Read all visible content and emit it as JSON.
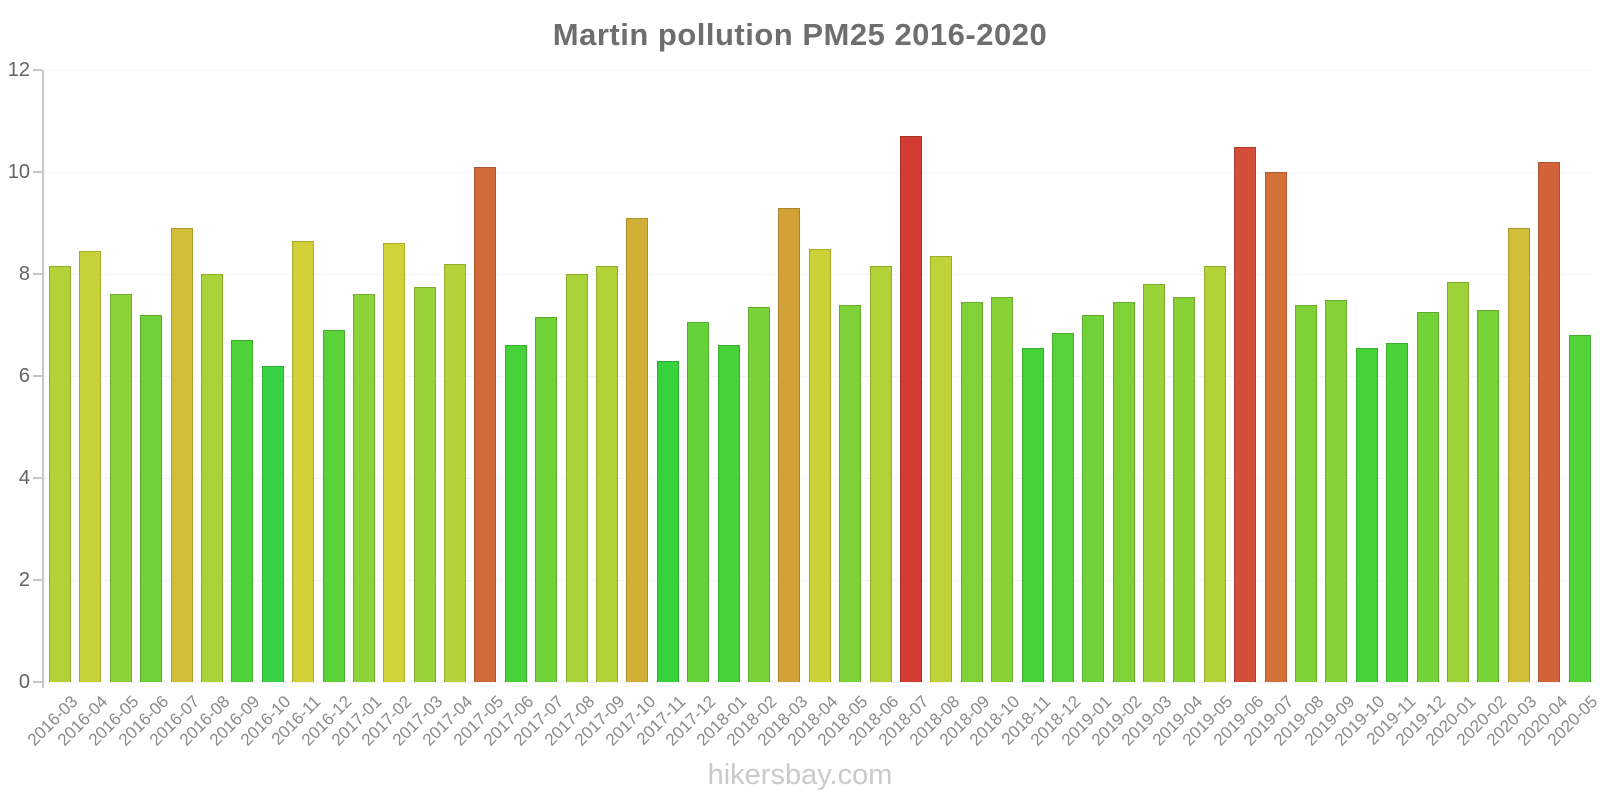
{
  "title": "Martin pollution PM25 2016-2020",
  "watermark": "hikersbay.com",
  "chart_data": {
    "type": "bar",
    "title": "Martin pollution PM25 2016-2020",
    "xlabel": "",
    "ylabel": "",
    "ylim": [
      0,
      12
    ],
    "yticks": [
      0,
      2,
      4,
      6,
      8,
      10,
      12
    ],
    "grid": "faint-horizontal",
    "legend": "none",
    "categories": [
      "2016-03",
      "2016-04",
      "2016-05",
      "2016-06",
      "2016-07",
      "2016-08",
      "2016-09",
      "2016-10",
      "2016-11",
      "2016-12",
      "2017-01",
      "2017-02",
      "2017-03",
      "2017-04",
      "2017-05",
      "2017-06",
      "2017-07",
      "2017-08",
      "2017-09",
      "2017-10",
      "2017-11",
      "2017-12",
      "2018-01",
      "2018-02",
      "2018-03",
      "2018-04",
      "2018-05",
      "2018-06",
      "2018-07",
      "2018-08",
      "2018-09",
      "2018-10",
      "2018-11",
      "2018-12",
      "2019-01",
      "2019-02",
      "2019-03",
      "2019-04",
      "2019-05",
      "2019-06",
      "2019-07",
      "2019-08",
      "2019-09",
      "2019-10",
      "2019-11",
      "2019-12",
      "2020-01",
      "2020-02",
      "2020-03",
      "2020-04",
      "2020-05"
    ],
    "values": [
      8.15,
      8.45,
      7.6,
      7.2,
      8.9,
      8.0,
      6.7,
      6.2,
      8.65,
      6.9,
      7.6,
      8.6,
      7.75,
      8.2,
      10.1,
      6.6,
      7.15,
      8.0,
      8.15,
      9.1,
      6.3,
      7.05,
      6.6,
      7.35,
      9.3,
      8.5,
      7.4,
      8.15,
      10.7,
      8.35,
      7.45,
      7.55,
      6.55,
      6.85,
      7.2,
      7.45,
      7.8,
      7.55,
      8.15,
      10.5,
      10.0,
      7.4,
      7.5,
      6.55,
      6.65,
      7.25,
      7.85,
      7.3,
      8.9,
      10.2,
      6.8
    ],
    "colors": [
      "#b2d238",
      "#c7d238",
      "#8cd238",
      "#70d238",
      "#d2bd38",
      "#a8d238",
      "#4dd238",
      "#38d244",
      "#d2cf38",
      "#5bd238",
      "#8cd238",
      "#d1d238",
      "#96d238",
      "#b6d238",
      "#d26a38",
      "#46d238",
      "#6ed238",
      "#a8d238",
      "#b2d238",
      "#d2b038",
      "#38d23d",
      "#65d238",
      "#46d238",
      "#7ad238",
      "#d2a238",
      "#cad238",
      "#7ed238",
      "#b2d238",
      "#d23c35",
      "#c0d238",
      "#81d238",
      "#88d238",
      "#43d238",
      "#58d238",
      "#70d238",
      "#81d238",
      "#9ad238",
      "#88d238",
      "#b2d238",
      "#d24e38",
      "#d27138",
      "#7ed238",
      "#85d238",
      "#43d238",
      "#4ad238",
      "#73d238",
      "#9dd238",
      "#77d238",
      "#d2bd38",
      "#d26338",
      "#54d238"
    ]
  }
}
